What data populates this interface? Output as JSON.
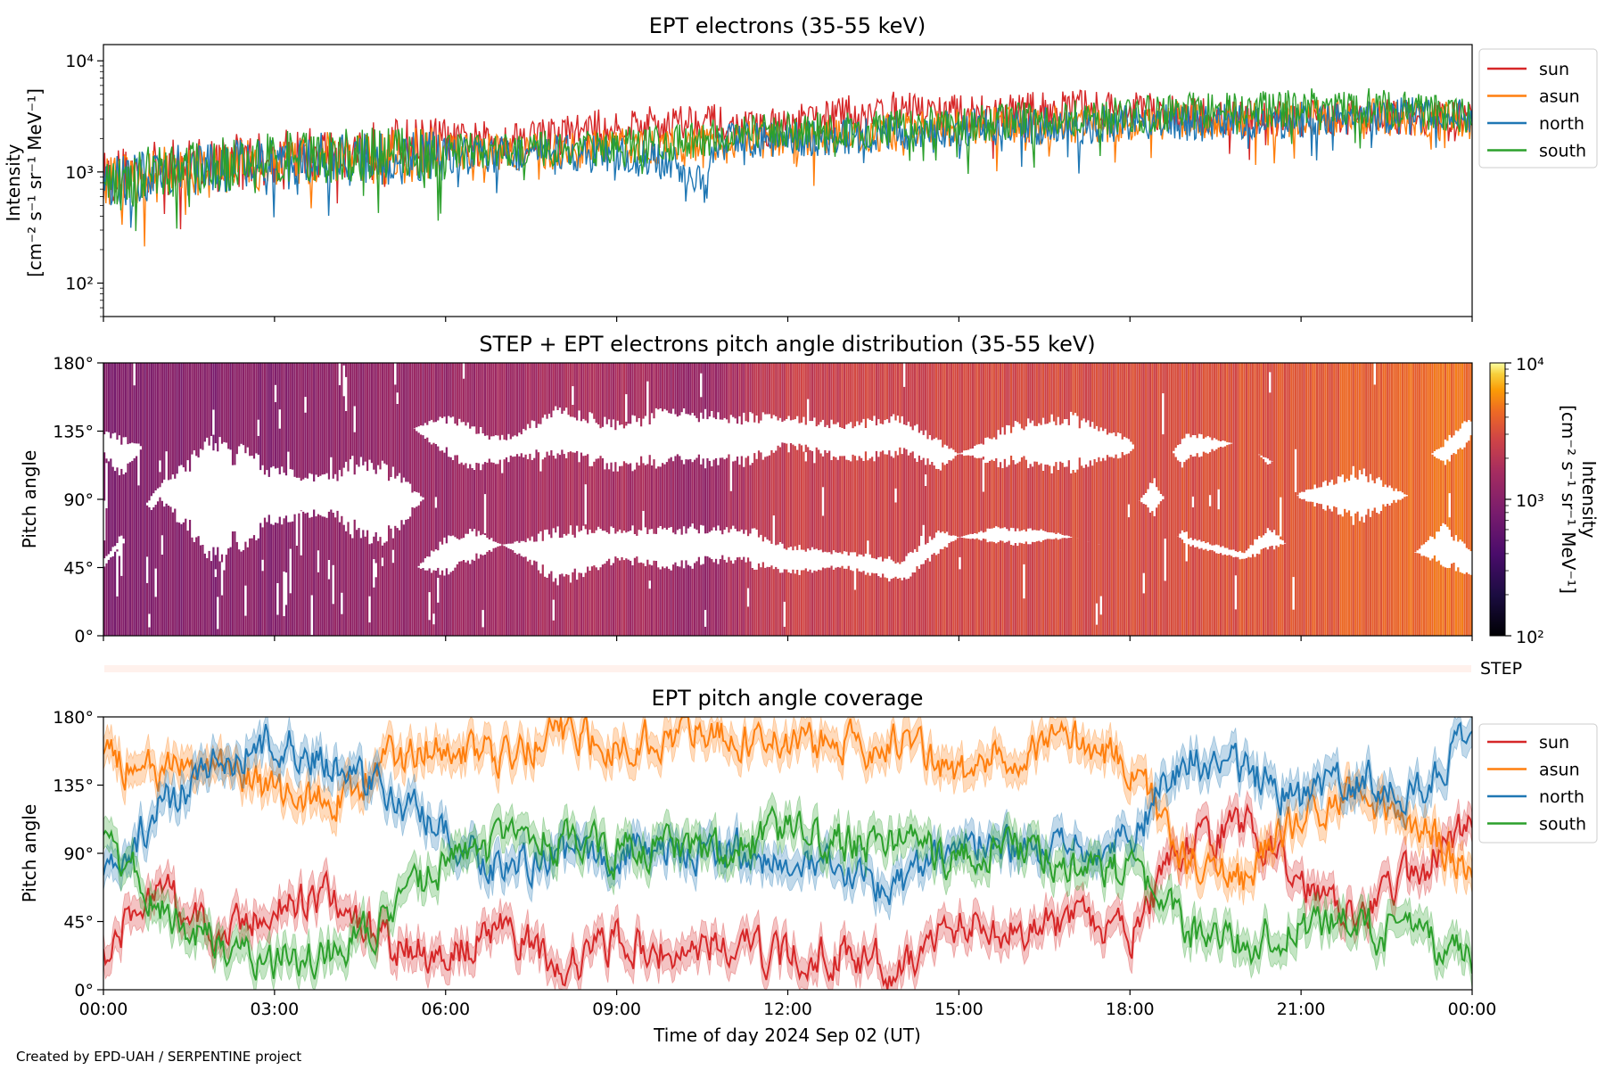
{
  "figure": {
    "footer": "Created by EPD-UAH / SERPENTINE project",
    "xlabel": "Time of day 2024 Sep 02 (UT)",
    "x_ticks": [
      "00:00",
      "03:00",
      "06:00",
      "09:00",
      "12:00",
      "15:00",
      "18:00",
      "21:00",
      "00:00"
    ],
    "step_label": "STEP"
  },
  "chart_data": [
    {
      "type": "line",
      "title": "EPT electrons (35-55 keV)",
      "ylabel": "Intensity",
      "ylabel_units": "[cm⁻² s⁻¹ sr⁻¹ MeV⁻¹]",
      "yscale": "log",
      "ylim": [
        50,
        14000
      ],
      "y_ticks": [
        "10²",
        "10³",
        "10⁴"
      ],
      "x_hours": [
        0,
        1,
        2,
        3,
        4,
        5,
        6,
        7,
        8,
        9,
        10,
        10.5,
        11,
        12,
        13,
        14,
        15,
        16,
        17,
        18,
        19,
        20,
        21,
        22,
        23,
        24
      ],
      "legend_location": "upper right, outside",
      "series": [
        {
          "name": "sun",
          "color": "#d62728",
          "values": [
            900,
            1100,
            1250,
            1350,
            1500,
            1700,
            1850,
            2000,
            2200,
            2600,
            2800,
            3000,
            2400,
            2600,
            3300,
            3600,
            3400,
            3500,
            3800,
            3600,
            3200,
            3000,
            3000,
            3200,
            3000,
            3000
          ]
        },
        {
          "name": "asun",
          "color": "#ff7f0e",
          "values": [
            800,
            950,
            1050,
            1200,
            1350,
            1350,
            1500,
            1550,
            1500,
            1700,
            1700,
            1800,
            1900,
            2000,
            2100,
            2300,
            2500,
            2600,
            2700,
            2750,
            3000,
            2900,
            3000,
            3200,
            3000,
            2900
          ]
        },
        {
          "name": "north",
          "color": "#1f77b4",
          "values": [
            750,
            950,
            1100,
            1200,
            1300,
            1300,
            1400,
            1450,
            1450,
            1450,
            1150,
            900,
            1900,
            2000,
            2100,
            2300,
            2500,
            2600,
            2600,
            2700,
            2800,
            2800,
            2900,
            3000,
            3200,
            3200
          ]
        },
        {
          "name": "south",
          "color": "#2ca02c",
          "values": [
            850,
            1000,
            1150,
            1300,
            1400,
            1450,
            1500,
            1550,
            1600,
            1700,
            1800,
            1900,
            2200,
            2300,
            2400,
            2500,
            2700,
            2900,
            3100,
            3200,
            3500,
            3600,
            3800,
            4000,
            3500,
            3200
          ]
        }
      ]
    },
    {
      "type": "heatmap",
      "title": "STEP + EPT electrons pitch angle distribution (35-55 keV)",
      "ylabel": "Pitch angle",
      "ylim": [
        0,
        180
      ],
      "y_ticks": [
        "0°",
        "45°",
        "90°",
        "135°",
        "180°"
      ],
      "colorbar": {
        "label": "Intensity",
        "units": "[cm⁻² s⁻¹ sr⁻¹ MeV⁻¹]",
        "scale": "log",
        "range": [
          100,
          10000
        ],
        "ticks": [
          "10²",
          "10³",
          "10⁴"
        ],
        "colormap": "inferno"
      },
      "intensity_trend_hours": [
        0,
        3,
        6,
        9,
        10.5,
        12,
        15,
        18,
        21,
        24
      ],
      "intensity_trend_values": [
        900,
        1000,
        1300,
        1700,
        1200,
        2400,
        2800,
        3000,
        3500,
        4500
      ]
    },
    {
      "type": "line",
      "title": "EPT pitch angle coverage",
      "ylabel": "Pitch angle",
      "ylim": [
        0,
        180
      ],
      "y_ticks": [
        "0°",
        "45°",
        "90°",
        "135°",
        "180°"
      ],
      "band_width_deg": 20,
      "x_hours": [
        0,
        1,
        2,
        3,
        4,
        5,
        6,
        7,
        8,
        9,
        10,
        11,
        12,
        13,
        14,
        15,
        16,
        17,
        18,
        19,
        20,
        21,
        22,
        23,
        24
      ],
      "legend_location": "upper right, outside",
      "series": [
        {
          "name": "sun",
          "color": "#d62728",
          "values": [
            25,
            70,
            30,
            55,
            60,
            30,
            20,
            40,
            15,
            30,
            25,
            30,
            20,
            25,
            15,
            45,
            40,
            45,
            35,
            95,
            110,
            70,
            55,
            75,
            110
          ]
        },
        {
          "name": "asun",
          "color": "#ff7f0e",
          "values": [
            155,
            140,
            150,
            130,
            125,
            150,
            165,
            150,
            170,
            160,
            170,
            165,
            165,
            160,
            165,
            140,
            160,
            165,
            150,
            85,
            75,
            115,
            130,
            110,
            75
          ]
        },
        {
          "name": "north",
          "color": "#1f77b4",
          "values": [
            70,
            120,
            150,
            165,
            150,
            130,
            100,
            80,
            90,
            90,
            90,
            95,
            80,
            75,
            70,
            100,
            90,
            90,
            100,
            155,
            145,
            125,
            140,
            130,
            165
          ]
        },
        {
          "name": "south",
          "color": "#2ca02c",
          "values": [
            100,
            55,
            30,
            20,
            25,
            45,
            85,
            95,
            100,
            90,
            95,
            90,
            105,
            95,
            100,
            85,
            95,
            85,
            75,
            40,
            30,
            45,
            40,
            35,
            20
          ]
        }
      ]
    }
  ]
}
